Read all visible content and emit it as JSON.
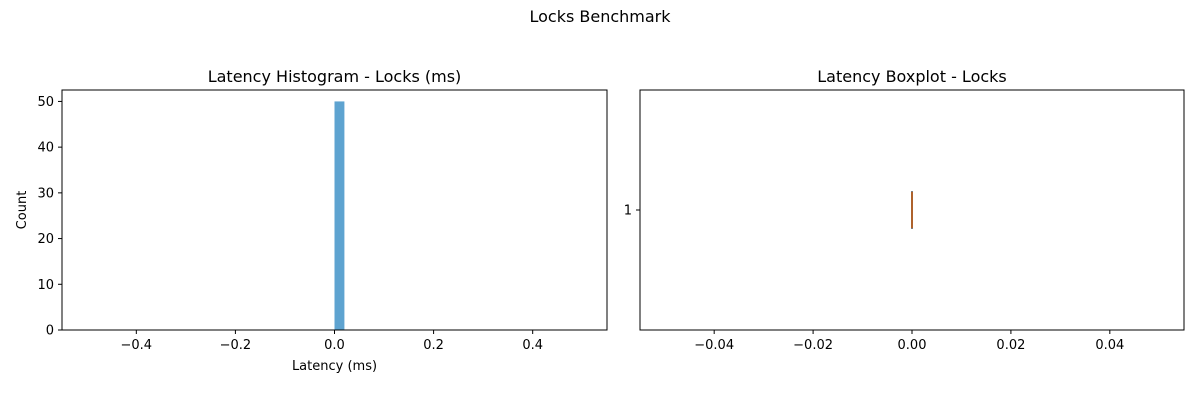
{
  "figure": {
    "title": "Locks Benchmark"
  },
  "chart_data": [
    {
      "type": "bar",
      "title": "Latency Histogram - Locks (ms)",
      "xlabel": "Latency (ms)",
      "ylabel": "Count",
      "xlim": [
        -0.55,
        0.55
      ],
      "ylim": [
        0,
        52.5
      ],
      "xticks": [
        -0.4,
        -0.2,
        0.0,
        0.2,
        0.4
      ],
      "xtick_labels": [
        "−0.4",
        "−0.2",
        "0.0",
        "0.2",
        "0.4"
      ],
      "yticks": [
        0,
        10,
        20,
        30,
        40,
        50
      ],
      "ytick_labels": [
        "0",
        "10",
        "20",
        "30",
        "40",
        "50"
      ],
      "bars": [
        {
          "x0": 0.0,
          "x1": 0.02,
          "value": 50
        }
      ],
      "color": "#5ea3d0",
      "grid": false
    },
    {
      "type": "boxplot",
      "title": "Latency Boxplot - Locks",
      "orientation": "horizontal",
      "xlabel": "",
      "ylabel": "",
      "xlim": [
        -0.055,
        0.055
      ],
      "xticks": [
        -0.04,
        -0.02,
        0.0,
        0.02,
        0.04
      ],
      "xtick_labels": [
        "−0.04",
        "−0.02",
        "0.00",
        "0.02",
        "0.04"
      ],
      "categories": [
        "1"
      ],
      "box": {
        "min": 0.0,
        "q1": 0.0,
        "median": 0.0,
        "q3": 0.0,
        "max": 0.0
      },
      "median_color": "#e8833a",
      "grid": false
    }
  ]
}
